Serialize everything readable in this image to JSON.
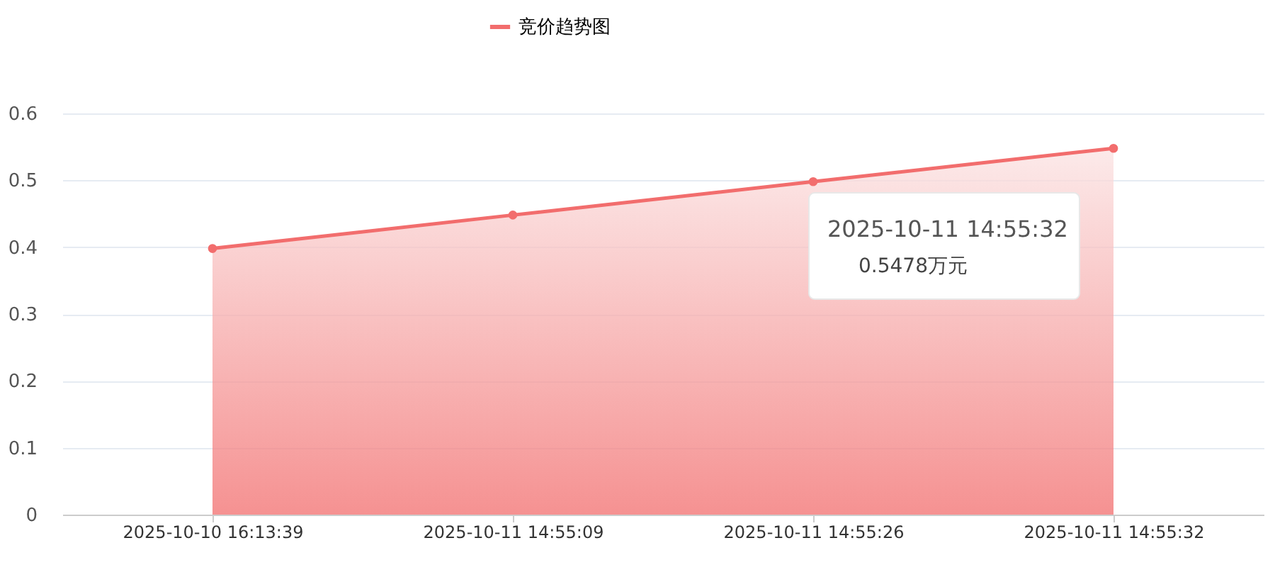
{
  "chart_data": {
    "type": "area",
    "categories": [
      "2025-10-10 16:13:39",
      "2025-10-11 14:55:09",
      "2025-10-11 14:55:26",
      "2025-10-11 14:55:32"
    ],
    "series": [
      {
        "name": "竞价趋势图",
        "color": "#f26d6d",
        "values": [
          0.398,
          0.448,
          0.498,
          0.5478
        ]
      }
    ],
    "ylim": [
      0,
      0.6
    ],
    "yticks": [
      {
        "value": 0,
        "label": "0"
      },
      0.1,
      0.2,
      0.3,
      0.4,
      0.5,
      0.6
    ],
    "grid": "y",
    "legend": "top",
    "marker": "circle",
    "line_style": "solid",
    "annotations": [
      "2025-10-11 14:55:32",
      "0.5478万元"
    ]
  }
}
